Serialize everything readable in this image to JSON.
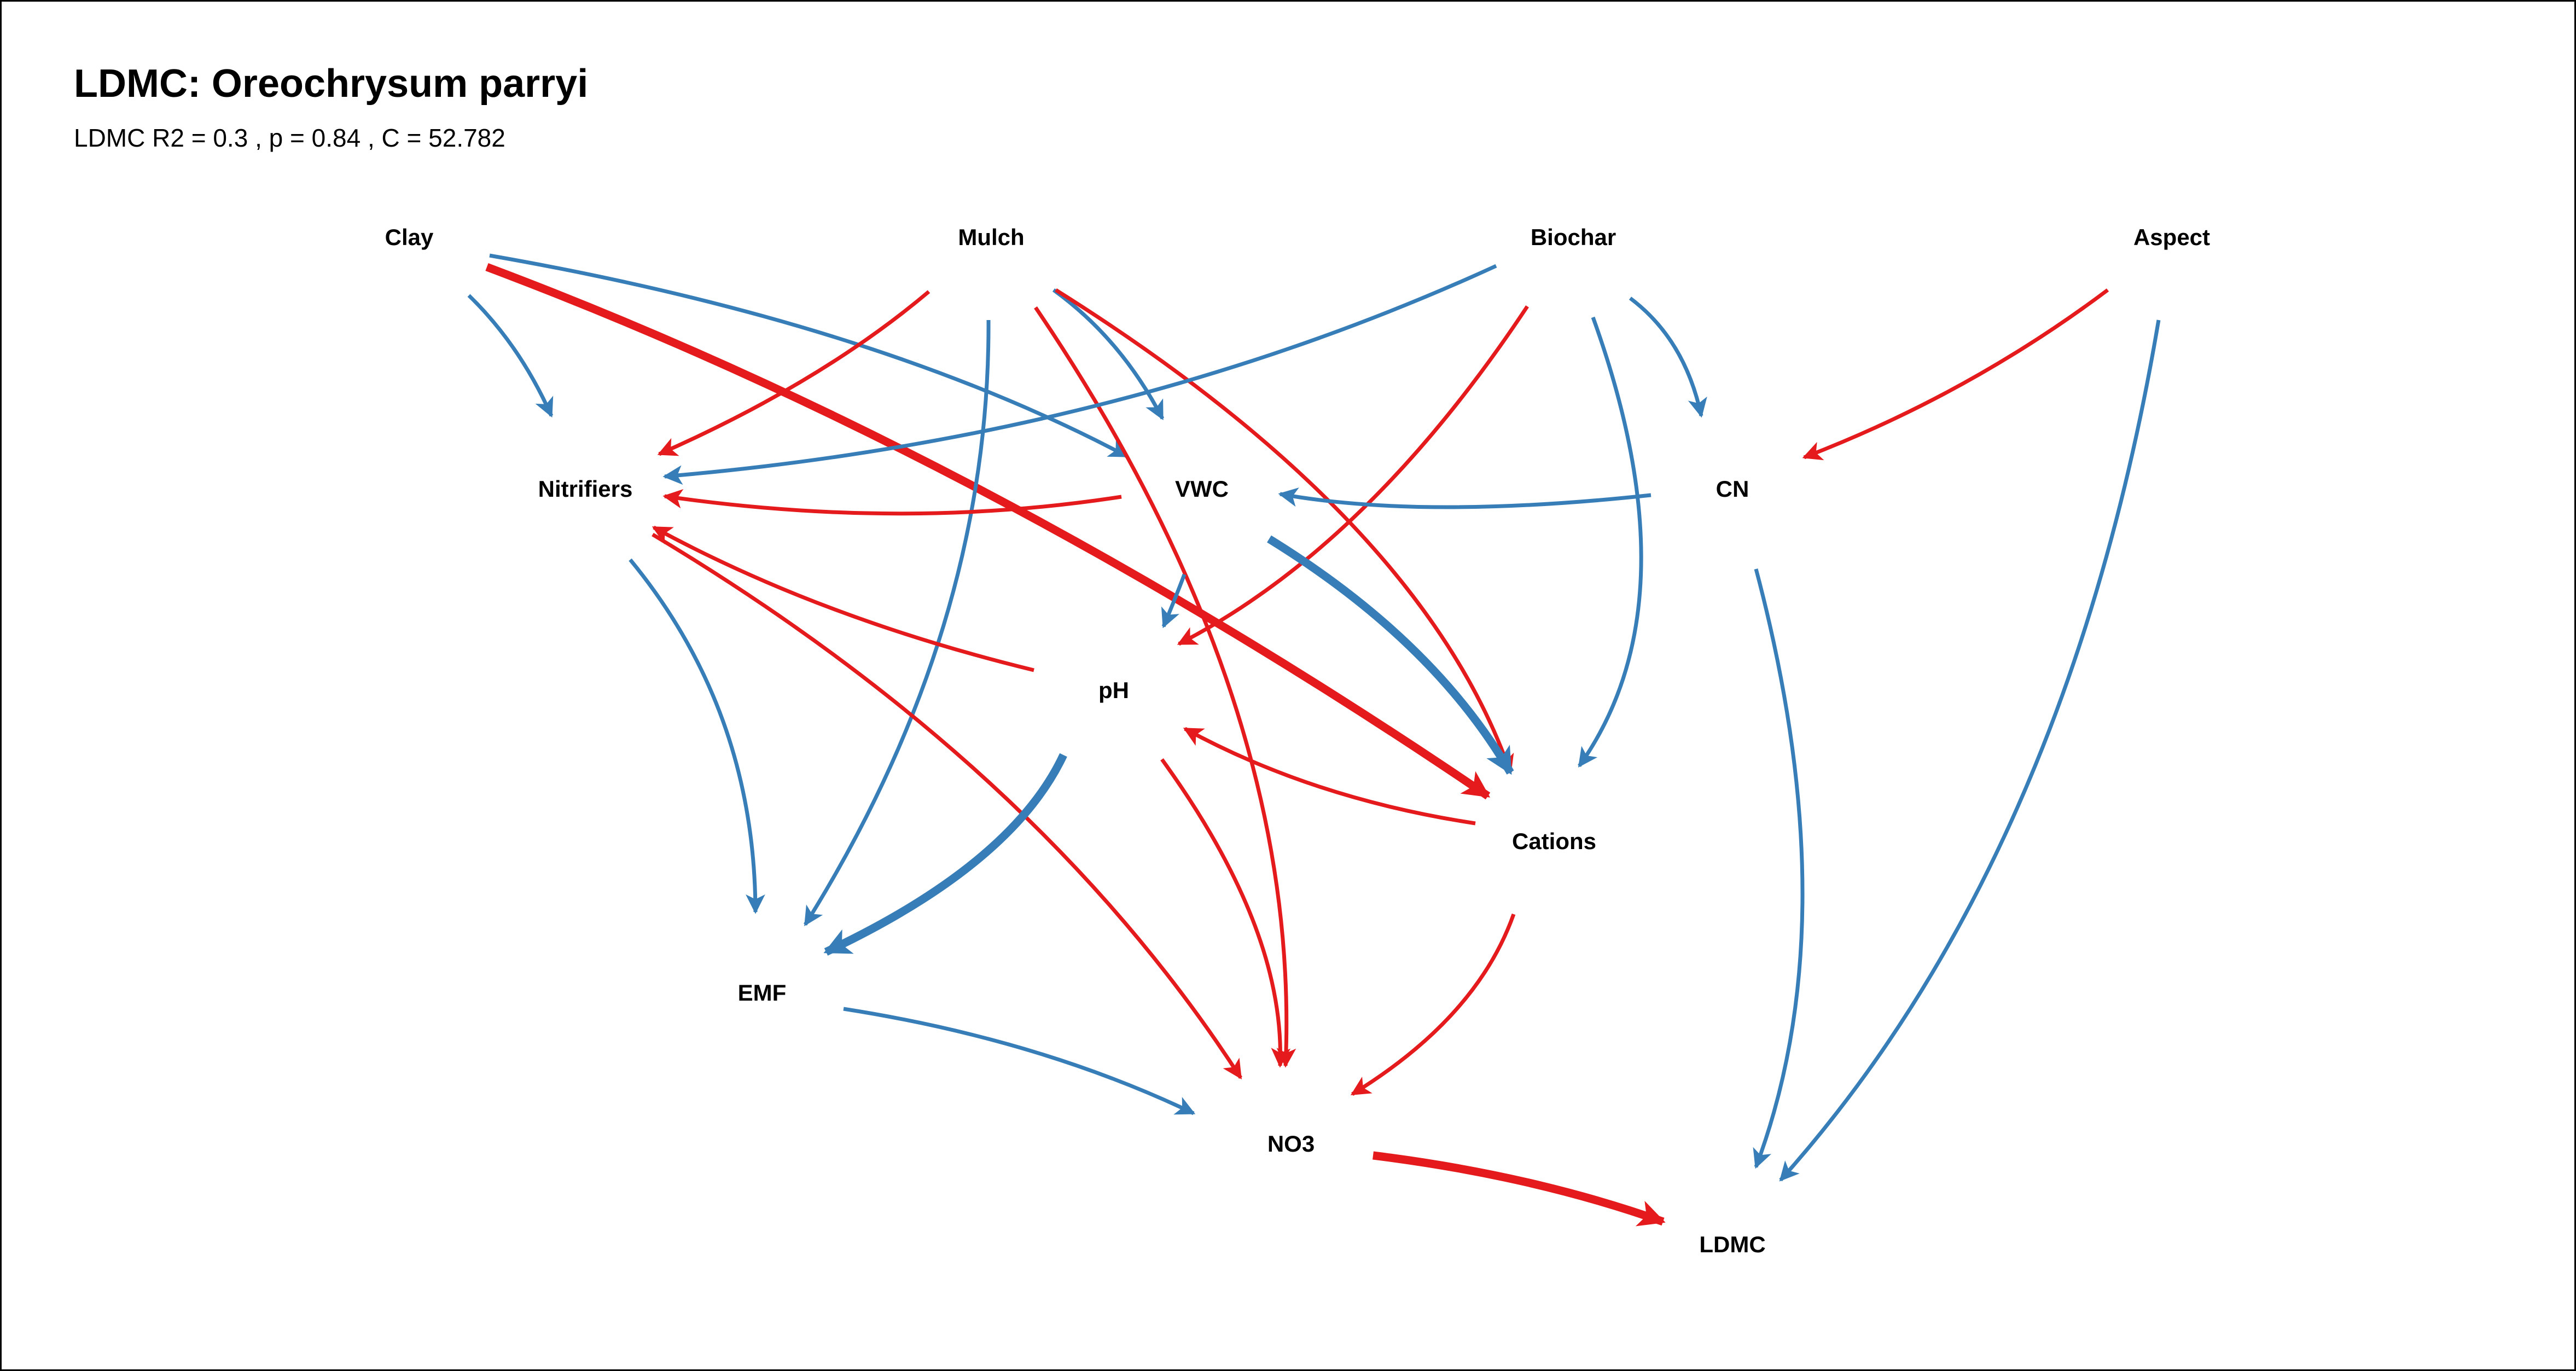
{
  "title": "LDMC: Oreochrysum parryi",
  "subtitle": "LDMC R2 = 0.3 , p =  0.84 , C = 52.782",
  "colors": {
    "positive": "#377eb8",
    "negative": "#e41a1c",
    "text": "#000000",
    "border": "#000000"
  },
  "nodes": [
    {
      "id": "clay",
      "label": "Clay"
    },
    {
      "id": "mulch",
      "label": "Mulch"
    },
    {
      "id": "biochar",
      "label": "Biochar"
    },
    {
      "id": "aspect",
      "label": "Aspect"
    },
    {
      "id": "nitrifiers",
      "label": "Nitrifiers"
    },
    {
      "id": "vwc",
      "label": "VWC"
    },
    {
      "id": "cn",
      "label": "CN"
    },
    {
      "id": "ph",
      "label": "pH"
    },
    {
      "id": "cations",
      "label": "Cations"
    },
    {
      "id": "emf",
      "label": "EMF"
    },
    {
      "id": "no3",
      "label": "NO3"
    },
    {
      "id": "ldmc",
      "label": "LDMC"
    }
  ],
  "edges": [
    {
      "from": "clay",
      "to": "nitrifiers",
      "sign": "positive",
      "strength": "weak"
    },
    {
      "from": "clay",
      "to": "vwc",
      "sign": "positive",
      "strength": "weak"
    },
    {
      "from": "clay",
      "to": "cations",
      "sign": "negative",
      "strength": "strong"
    },
    {
      "from": "mulch",
      "to": "nitrifiers",
      "sign": "negative",
      "strength": "weak"
    },
    {
      "from": "mulch",
      "to": "emf",
      "sign": "positive",
      "strength": "weak"
    },
    {
      "from": "mulch",
      "to": "vwc",
      "sign": "positive",
      "strength": "weak"
    },
    {
      "from": "mulch",
      "to": "no3",
      "sign": "negative",
      "strength": "weak"
    },
    {
      "from": "mulch",
      "to": "cations",
      "sign": "negative",
      "strength": "weak"
    },
    {
      "from": "biochar",
      "to": "nitrifiers",
      "sign": "positive",
      "strength": "weak"
    },
    {
      "from": "biochar",
      "to": "ph",
      "sign": "negative",
      "strength": "weak"
    },
    {
      "from": "biochar",
      "to": "cations",
      "sign": "positive",
      "strength": "weak"
    },
    {
      "from": "biochar",
      "to": "cn",
      "sign": "positive",
      "strength": "weak"
    },
    {
      "from": "aspect",
      "to": "cn",
      "sign": "negative",
      "strength": "weak"
    },
    {
      "from": "aspect",
      "to": "ldmc",
      "sign": "positive",
      "strength": "weak"
    },
    {
      "from": "vwc",
      "to": "nitrifiers",
      "sign": "negative",
      "strength": "weak"
    },
    {
      "from": "vwc",
      "to": "ph",
      "sign": "positive",
      "strength": "weak"
    },
    {
      "from": "vwc",
      "to": "cations",
      "sign": "positive",
      "strength": "strong"
    },
    {
      "from": "cn",
      "to": "vwc",
      "sign": "positive",
      "strength": "weak"
    },
    {
      "from": "cn",
      "to": "ldmc",
      "sign": "positive",
      "strength": "weak"
    },
    {
      "from": "nitrifiers",
      "to": "emf",
      "sign": "positive",
      "strength": "weak"
    },
    {
      "from": "nitrifiers",
      "to": "no3",
      "sign": "negative",
      "strength": "weak"
    },
    {
      "from": "ph",
      "to": "nitrifiers",
      "sign": "negative",
      "strength": "weak"
    },
    {
      "from": "ph",
      "to": "emf",
      "sign": "positive",
      "strength": "strong"
    },
    {
      "from": "ph",
      "to": "no3",
      "sign": "negative",
      "strength": "weak"
    },
    {
      "from": "cations",
      "to": "ph",
      "sign": "negative",
      "strength": "weak"
    },
    {
      "from": "cations",
      "to": "no3",
      "sign": "negative",
      "strength": "weak"
    },
    {
      "from": "emf",
      "to": "no3",
      "sign": "positive",
      "strength": "weak"
    },
    {
      "from": "no3",
      "to": "ldmc",
      "sign": "negative",
      "strength": "strong"
    }
  ]
}
